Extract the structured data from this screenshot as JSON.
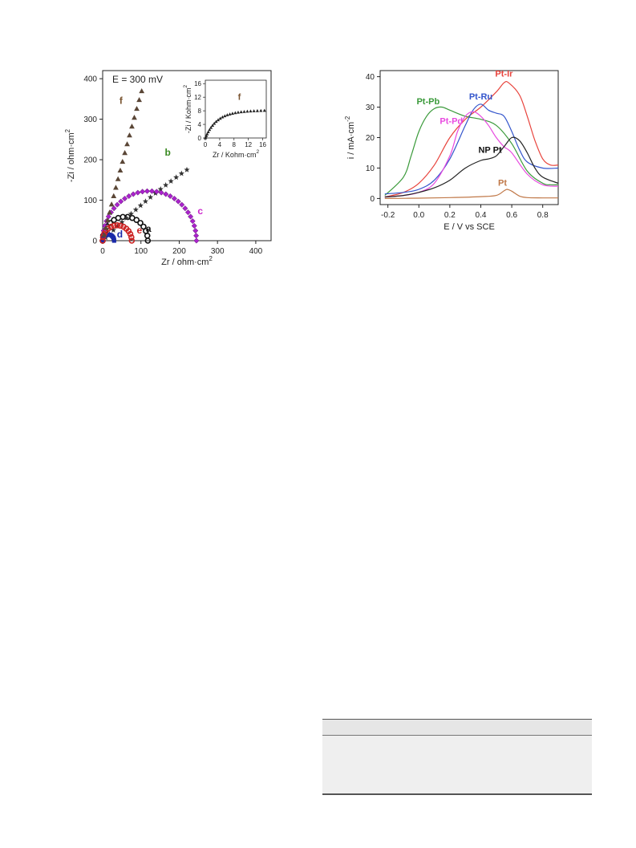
{
  "chart_data": [
    {
      "type": "scatter",
      "annotation": "E = 300 mV",
      "xlabel": "Zr / ohm·cm",
      "xlabel_sup": "2",
      "ylabel": "-Zi / ohm·cm",
      "ylabel_sup": "2",
      "xlim": [
        0,
        440
      ],
      "ylim": [
        0,
        420
      ],
      "x_ticks": [
        0,
        100,
        200,
        300,
        400
      ],
      "y_ticks": [
        0,
        100,
        200,
        300,
        400
      ],
      "series": [
        {
          "name": "a",
          "color": "#111111",
          "marker": "circle",
          "kind": "arc",
          "r0": 0,
          "r1": 118
        },
        {
          "name": "b",
          "color": "#333333",
          "marker": "star",
          "kind": "ray",
          "slope": 0.94,
          "xmax": 220
        },
        {
          "name": "c",
          "color": "#aa22cc",
          "marker": "diamond",
          "kind": "arc",
          "r0": 0,
          "r1": 245
        },
        {
          "name": "d",
          "color": "#1a2aa8",
          "marker": "square",
          "kind": "arc",
          "r0": 0,
          "r1": 30
        },
        {
          "name": "e",
          "color": "#cc2222",
          "marker": "circle",
          "kind": "arc",
          "r0": 0,
          "r1": 76
        },
        {
          "name": "f",
          "color": "#5a4636",
          "marker": "triangle",
          "kind": "ray",
          "slope": 3.9,
          "xmax": 102
        }
      ],
      "label_colors": {
        "a": "#111111",
        "b": "#3a8a22",
        "c": "#cc22cc",
        "d": "#1a2aa8",
        "e": "#cc2222",
        "f": "#7a5430"
      },
      "inset": {
        "series_label": "f",
        "xlabel": "Zr / Kohm·cm",
        "xlabel_sup": "2",
        "ylabel": "-Zi / Kohm·cm",
        "ylabel_sup": "2",
        "xlim": [
          0,
          17
        ],
        "ylim": [
          0,
          17
        ],
        "x_ticks": [
          0,
          4,
          8,
          12,
          16
        ],
        "y_ticks": [
          0,
          4,
          8,
          12,
          16
        ]
      }
    },
    {
      "type": "line",
      "xlabel": "E / V vs SCE",
      "ylabel": "i / mA·cm",
      "ylabel_sup": "-2",
      "xlim": [
        -0.25,
        0.9
      ],
      "ylim": [
        -2,
        42
      ],
      "x_ticks": [
        -0.2,
        0.0,
        0.2,
        0.4,
        0.6,
        0.8
      ],
      "y_ticks": [
        0,
        10,
        20,
        30,
        40
      ],
      "series": [
        {
          "name": "Pt-Ir",
          "color": "#e8433c",
          "x": [
            -0.22,
            -0.1,
            0.0,
            0.1,
            0.2,
            0.3,
            0.4,
            0.5,
            0.55,
            0.58,
            0.65,
            0.7,
            0.75,
            0.8,
            0.85,
            0.9
          ],
          "y": [
            0.5,
            2,
            5,
            11,
            20,
            26,
            30,
            35,
            38,
            38,
            34,
            27,
            19,
            13,
            11,
            11
          ]
        },
        {
          "name": "Pt-Pb",
          "color": "#3a9a3a",
          "x": [
            -0.22,
            -0.1,
            -0.05,
            0.0,
            0.05,
            0.1,
            0.15,
            0.2,
            0.3,
            0.4,
            0.5,
            0.6,
            0.7,
            0.8,
            0.85,
            0.9
          ],
          "y": [
            1,
            7,
            14,
            22,
            27,
            29.5,
            30,
            29,
            27,
            26,
            24,
            18,
            9,
            5,
            4.5,
            4.5
          ]
        },
        {
          "name": "Pt-Ru",
          "color": "#3355cc",
          "x": [
            -0.22,
            -0.1,
            0.0,
            0.1,
            0.2,
            0.3,
            0.35,
            0.4,
            0.45,
            0.5,
            0.55,
            0.6,
            0.65,
            0.7,
            0.8,
            0.9
          ],
          "y": [
            1.5,
            2,
            3,
            6,
            13,
            24,
            29,
            31,
            29,
            28,
            27,
            22,
            16,
            12,
            10,
            10
          ]
        },
        {
          "name": "Pt-Pd",
          "color": "#e84ae0",
          "x": [
            -0.22,
            -0.1,
            0.0,
            0.1,
            0.2,
            0.25,
            0.3,
            0.35,
            0.4,
            0.45,
            0.5,
            0.55,
            0.6,
            0.7,
            0.8,
            0.9
          ],
          "y": [
            0.5,
            1,
            2,
            5,
            14,
            22,
            27,
            28.5,
            27,
            24,
            20,
            17,
            15,
            8,
            4.5,
            4
          ]
        },
        {
          "name": "NP Pt",
          "color": "#222222",
          "x": [
            -0.22,
            -0.1,
            0.0,
            0.1,
            0.2,
            0.3,
            0.4,
            0.45,
            0.5,
            0.55,
            0.6,
            0.65,
            0.7,
            0.75,
            0.8,
            0.9
          ],
          "y": [
            0.5,
            1,
            2,
            3.5,
            6,
            10,
            12.5,
            13,
            14,
            17,
            20,
            19,
            15,
            10,
            7,
            5
          ]
        },
        {
          "name": "Pt",
          "color": "#c07848",
          "x": [
            -0.22,
            0.0,
            0.2,
            0.4,
            0.5,
            0.55,
            0.57,
            0.6,
            0.65,
            0.7,
            0.8,
            0.9
          ],
          "y": [
            0,
            0.1,
            0.3,
            0.6,
            1,
            2.5,
            3,
            2.4,
            0.8,
            0.3,
            0.2,
            0.2
          ]
        }
      ]
    }
  ]
}
